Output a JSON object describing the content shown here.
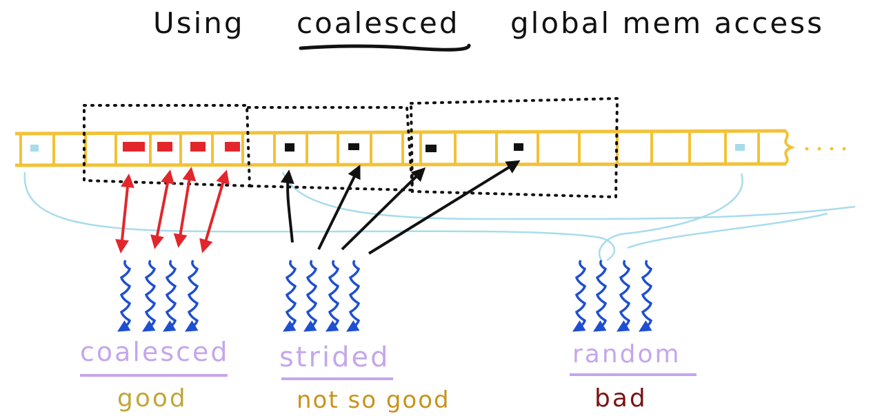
{
  "title": {
    "prefix": "Using",
    "highlight": "coalesced",
    "suffix": "global mem access"
  },
  "patterns": [
    {
      "label": "coalesced",
      "rating": "good"
    },
    {
      "label": "strided",
      "rating": "not so good"
    },
    {
      "label": "random",
      "rating": "bad"
    }
  ],
  "colors": {
    "memory": "#f2c237",
    "coalesced": "#e2262b",
    "strided": "#111111",
    "threads": "#1f4fd1",
    "random_lines": "#a7dcec",
    "pattern_label": "#c5a6ec",
    "good": "#bfa73a",
    "not_so_good": "#c7931d",
    "bad": "#7a1414",
    "title": "#111111"
  }
}
